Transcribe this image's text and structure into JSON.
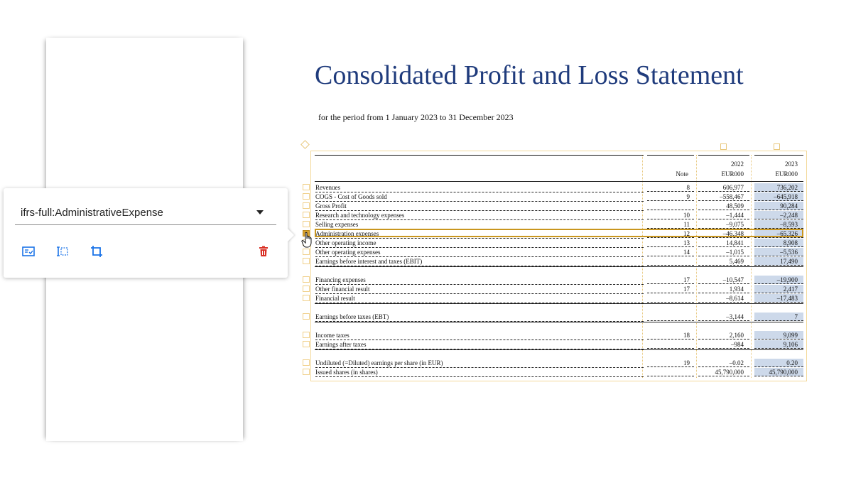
{
  "tag_panel": {
    "selected_tag": "ifrs-full:AdministrativeExpense",
    "actions": [
      {
        "name": "fact-details-icon"
      },
      {
        "name": "text-select-icon"
      },
      {
        "name": "crop-icon"
      },
      {
        "name": "delete-icon"
      }
    ],
    "colors": {
      "icon_blue": "#1a73e8",
      "delete_red": "#d93025"
    }
  },
  "document": {
    "title": "Consolidated Profit and Loss Statement",
    "subtitle": "for the period from 1 January 2023 to 31 December 2023",
    "table": {
      "headers": {
        "note": "Note",
        "year1": "2022",
        "unit1": "EUR000",
        "year2": "2023",
        "unit2": "EUR000"
      },
      "rows": [
        {
          "label": "Revenues",
          "note": "8",
          "v2022": "606,977",
          "v2023": "736,202"
        },
        {
          "label": "COGS - Cost of Goods sold",
          "note": "9",
          "v2022": "–558,467",
          "v2023": "–645,918"
        },
        {
          "label": "Gross Profit",
          "note": "",
          "v2022": "48,509",
          "v2023": "90,284"
        },
        {
          "label": "Research and technology expenses",
          "note": "10",
          "v2022": "–1,444",
          "v2023": "–2,248"
        },
        {
          "label": "Selling expenses",
          "note": "11",
          "v2022": "–9,075",
          "v2023": "–8,593"
        },
        {
          "label": "Administration expenses",
          "note": "12",
          "v2022": "–46,348",
          "v2023": "–65,326"
        },
        {
          "label": "Other operating income",
          "note": "13",
          "v2022": "14,841",
          "v2023": "8,908"
        },
        {
          "label": "Other operating expenses",
          "note": "14",
          "v2022": "–1,015",
          "v2023": "–5,536"
        },
        {
          "label": "Earnings before interest and taxes (EBIT)",
          "note": "",
          "v2022": "5,469",
          "v2023": "17,490"
        },
        {
          "label": "Financing expenses",
          "note": "17",
          "v2022": "–10,547",
          "v2023": "–19,900"
        },
        {
          "label": "Other financial result",
          "note": "17",
          "v2022": "1,934",
          "v2023": "2,417"
        },
        {
          "label": "Financial result",
          "note": "",
          "v2022": "–8,614",
          "v2023": "–17,483"
        },
        {
          "label": "Earnings before taxes (EBT)",
          "note": "",
          "v2022": "–3,144",
          "v2023": "7"
        },
        {
          "label": "Income taxes",
          "note": "18",
          "v2022": "2,160",
          "v2023": "9,099"
        },
        {
          "label": "Earnings after taxes",
          "note": "",
          "v2022": "–984",
          "v2023": "9,106"
        },
        {
          "label": "Undiluted (=Diluted) earnings per share (in EUR)",
          "note": "19",
          "v2022": "–0.02",
          "v2023": "0.20"
        },
        {
          "label": "Issued shares (in shares)",
          "note": "",
          "v2022": "45,790,000",
          "v2023": "45,790,000"
        }
      ],
      "selected_row": "Administration expenses",
      "highlight_color": "#cdd9ea",
      "selection_color": "#c9961e"
    }
  }
}
